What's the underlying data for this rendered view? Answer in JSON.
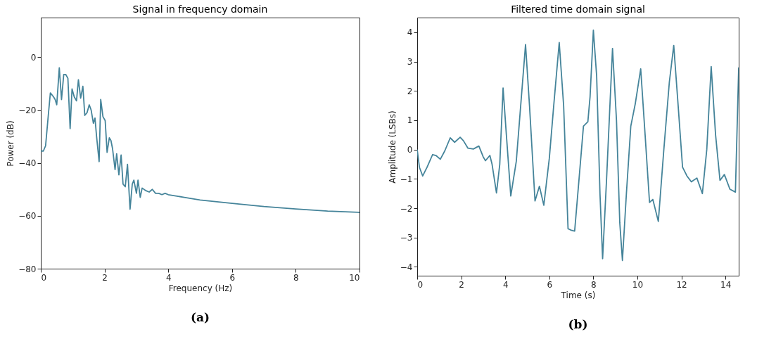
{
  "chart_data": [
    {
      "type": "line",
      "title": "Signal in frequency domain",
      "xlabel": "Frequency (Hz)",
      "ylabel": "Power (dB)",
      "xlim": [
        0,
        10
      ],
      "ylim": [
        -80,
        15
      ],
      "xticks": [
        0,
        2,
        4,
        6,
        8,
        10
      ],
      "yticks": [
        -80,
        -60,
        -40,
        -20,
        0
      ],
      "grid": false,
      "annotations": [
        "(a)"
      ],
      "series": [
        {
          "color": "#45849a",
          "x": [
            0,
            0.08,
            0.15,
            0.25,
            0.3,
            0.4,
            0.45,
            0.5,
            0.58,
            0.65,
            0.72,
            0.78,
            0.85,
            0.92,
            0.98,
            1.05,
            1.12,
            1.18,
            1.25,
            1.32,
            1.38,
            1.45,
            1.52,
            1.58,
            1.65,
            1.7,
            1.75,
            1.83,
            1.88,
            1.95,
            2.02,
            2.08,
            2.15,
            2.2,
            2.25,
            2.33,
            2.38,
            2.45,
            2.52,
            2.58,
            2.65,
            2.72,
            2.8,
            2.87,
            2.92,
            3.0,
            3.05,
            3.12,
            3.18,
            3.3,
            3.4,
            3.5,
            3.6,
            3.7,
            3.8,
            3.9,
            4.0,
            4.5,
            5,
            6,
            7,
            8,
            9,
            10
          ],
          "values": [
            -35.5,
            -35.5,
            -33.5,
            -20,
            -13.5,
            -15,
            -16,
            -18,
            -4,
            -16,
            -6.5,
            -6.5,
            -8,
            -27,
            -12,
            -15,
            -16.5,
            -8.5,
            -15.5,
            -11,
            -22,
            -21,
            -18,
            -20,
            -25,
            -23,
            -30,
            -39.5,
            -16,
            -22.5,
            -24,
            -36,
            -30.5,
            -31.5,
            -34.5,
            -42.5,
            -36.5,
            -44.5,
            -37,
            -48,
            -49,
            -40.5,
            -57.5,
            -48,
            -46.5,
            -51.5,
            -46.5,
            -53,
            -49.5,
            -50.5,
            -51,
            -50,
            -51.5,
            -51.5,
            -52,
            -51.5,
            -52,
            -53,
            -54,
            -55.3,
            -56.5,
            -57.4,
            -58.2,
            -58.7
          ]
        }
      ]
    },
    {
      "type": "line",
      "title": "Filtered time domain signal",
      "xlabel": "Time (s)",
      "ylabel": "Amplitude (LSBs)",
      "xlim": [
        0,
        14.6
      ],
      "ylim": [
        -4.3,
        4.5
      ],
      "xticks": [
        0,
        2,
        4,
        6,
        8,
        10,
        12,
        14
      ],
      "yticks": [
        -4,
        -3,
        -2,
        -1,
        0,
        1,
        2,
        3,
        4
      ],
      "grid": false,
      "annotations": [
        "(b)"
      ],
      "series": [
        {
          "color": "#45849a",
          "x": [
            0,
            0.1,
            0.25,
            0.45,
            0.7,
            0.85,
            1.05,
            1.25,
            1.5,
            1.7,
            1.95,
            2.1,
            2.3,
            2.55,
            2.8,
            3.0,
            3.1,
            3.3,
            3.4,
            3.6,
            3.75,
            3.9,
            4.05,
            4.25,
            4.5,
            4.7,
            4.92,
            5.1,
            5.35,
            5.55,
            5.75,
            6.0,
            6.2,
            6.45,
            6.65,
            6.85,
            7.0,
            7.15,
            7.35,
            7.55,
            7.75,
            7.85,
            8.0,
            8.15,
            8.3,
            8.42,
            8.6,
            8.87,
            9.05,
            9.2,
            9.32,
            9.5,
            9.7,
            9.9,
            10.15,
            10.35,
            10.55,
            10.7,
            10.95,
            11.2,
            11.45,
            11.65,
            11.85,
            12.05,
            12.25,
            12.45,
            12.7,
            12.95,
            13.15,
            13.35,
            13.55,
            13.75,
            13.95,
            14.2,
            14.45,
            14.6
          ],
          "values": [
            0,
            -0.6,
            -0.9,
            -0.6,
            -0.17,
            -0.2,
            -0.33,
            -0.05,
            0.4,
            0.25,
            0.42,
            0.3,
            0.05,
            0.02,
            0.12,
            -0.25,
            -0.38,
            -0.2,
            -0.5,
            -1.48,
            -0.5,
            2.1,
            0.5,
            -1.58,
            -0.4,
            1.5,
            3.58,
            1.5,
            -1.75,
            -1.25,
            -1.9,
            -0.3,
            1.5,
            3.65,
            1.5,
            -2.7,
            -2.75,
            -2.78,
            -1,
            0.8,
            0.95,
            1.8,
            4.07,
            2.5,
            -1.5,
            -3.72,
            -1,
            3.45,
            1,
            -2.5,
            -3.78,
            -1.5,
            0.8,
            1.55,
            2.75,
            0.5,
            -1.8,
            -1.7,
            -2.45,
            0,
            2.3,
            3.55,
            1.5,
            -0.6,
            -0.9,
            -1.1,
            -0.97,
            -1.5,
            0,
            2.83,
            0.5,
            -1.05,
            -0.85,
            -1.35,
            -1.45,
            2.8
          ]
        }
      ]
    }
  ]
}
